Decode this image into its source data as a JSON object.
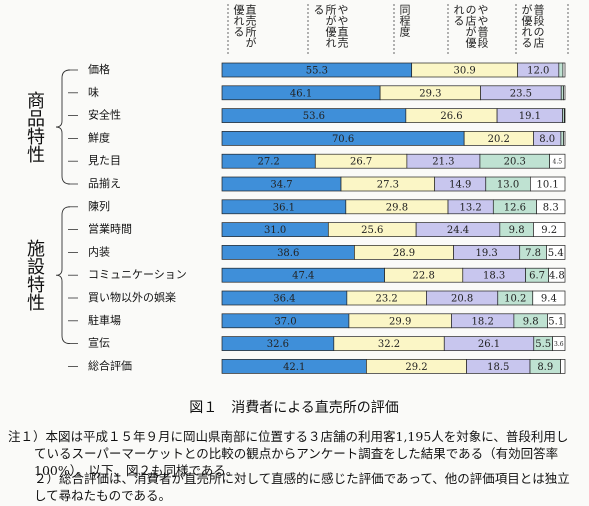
{
  "chart_data": {
    "type": "stacked-bar-horizontal",
    "categories": [
      "価格",
      "味",
      "安全性",
      "鮮度",
      "見た目",
      "品揃え",
      "陳列",
      "営業時間",
      "内装",
      "コミュニケーション",
      "買い物以外の娯楽",
      "駐車場",
      "宣伝",
      "総合評価"
    ],
    "groups": [
      "商品特性",
      "施設特性"
    ],
    "xlim": [
      0,
      100
    ],
    "series": [
      {
        "name": "直売所が優れる",
        "color": "#3f8fd9",
        "values": [
          55.3,
          46.1,
          53.6,
          70.6,
          27.2,
          34.7,
          36.1,
          31.0,
          38.6,
          47.4,
          36.4,
          37.0,
          32.6,
          42.1
        ],
        "value_labels": [
          "55.3",
          "46.1",
          "53.6",
          "70.6",
          "27.2",
          "34.7",
          "36.1",
          "31.0",
          "38.6",
          "47.4",
          "36.4",
          "37.0",
          "32.6",
          "42.1"
        ]
      },
      {
        "name": "やや直売所が優れる",
        "color": "#fbf6c6",
        "values": [
          30.9,
          29.3,
          26.6,
          20.2,
          26.7,
          27.3,
          29.8,
          25.6,
          28.9,
          22.8,
          23.2,
          29.9,
          32.2,
          29.2
        ],
        "value_labels": [
          "30.9",
          "29.3",
          "26.6",
          "20.2",
          "26.7",
          "27.3",
          "29.8",
          "25.6",
          "28.9",
          "22.8",
          "23.2",
          "29.9",
          "32.2",
          "29.2"
        ]
      },
      {
        "name": "同程度",
        "color": "#c8c6ee",
        "values": [
          12.0,
          23.5,
          19.1,
          8.0,
          21.3,
          14.9,
          13.2,
          24.4,
          19.3,
          18.3,
          20.8,
          18.2,
          26.1,
          18.5
        ],
        "value_labels": [
          "12.0",
          "23.5",
          "19.1",
          "8.0",
          "21.3",
          "14.9",
          "13.2",
          "24.4",
          "19.3",
          "18.3",
          "20.8",
          "18.2",
          "26.1",
          "18.5"
        ]
      },
      {
        "name": "やや普段の店が優れる",
        "color": "#bfe2d2",
        "values": [
          1.2,
          0.7,
          0.5,
          0.8,
          20.3,
          13.0,
          12.6,
          9.8,
          7.8,
          6.7,
          10.2,
          9.8,
          5.5,
          8.9
        ],
        "value_labels": [
          null,
          null,
          null,
          null,
          "20.3",
          "13.0",
          "12.6",
          "9.8",
          "7.8",
          "6.7",
          "10.2",
          "9.8",
          "5.5",
          "8.9"
        ]
      },
      {
        "name": "普段の店が優れる",
        "color": "#ffffff",
        "values": [
          0.6,
          0.4,
          0.2,
          0.4,
          4.5,
          10.1,
          8.3,
          9.2,
          5.4,
          4.8,
          9.4,
          5.1,
          3.6,
          1.3
        ],
        "value_labels": [
          null,
          null,
          null,
          null,
          "4.5",
          "10.1",
          "8.3",
          "9.2",
          "5.4",
          "4.8",
          "9.4",
          "5.1",
          "3.6",
          null
        ]
      }
    ],
    "caption": "図１　消費者による直売所の評価",
    "notes": [
      "注１）本図は平成１５年９月に岡山県南部に位置する３店舗の利用客1,195人を対象に、普段利用しているスーパーマーケットとの比較の観点からアンケート調査をした結果である（有効回答率100%）。以下、図２も同様である。",
      "２）総合評価は、消費者が直売所に対して直感的に感じた評価であって、他の評価項目とは独立して尋ねたものである。"
    ]
  }
}
